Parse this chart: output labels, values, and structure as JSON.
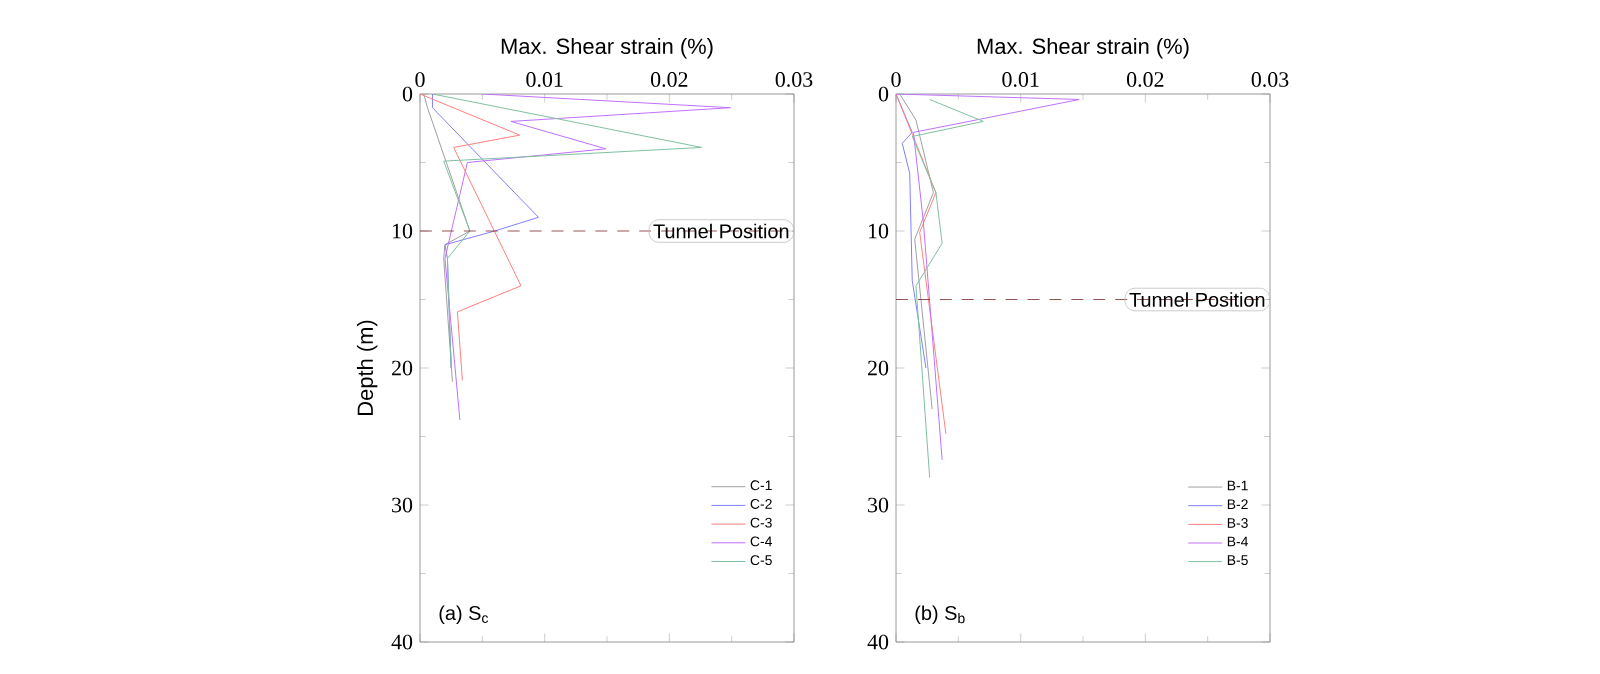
{
  "chart_data": [
    {
      "type": "line",
      "xlabel": "Max. Shear strain (%)",
      "ylabel": "Depth (m)",
      "xlim": [
        0,
        0.03
      ],
      "ylim": [
        40,
        0
      ],
      "xticks": [
        0,
        0.01,
        0.02,
        0.03
      ],
      "yticks": [
        0,
        10,
        20,
        30,
        40
      ],
      "legend": "bottom right",
      "annotations": [
        "(a) S$_{c}$"
      ],
      "ref_lines": [
        {
          "axis": "y",
          "value": 10,
          "label": "Tunnel Position",
          "color": "#7a2a2a",
          "line_style": "dashed"
        }
      ],
      "series": [
        {
          "name": "C-1",
          "color": "#a0a0a0",
          "x": [
            0.0003,
            0.0006,
            0.004,
            0.002,
            0.0019,
            0.0026
          ],
          "values": [
            0,
            1,
            10,
            11,
            12,
            21
          ]
        },
        {
          "name": "C-2",
          "color": "#8080ff",
          "x": [
            0.001,
            0.001,
            0.0095,
            0.006,
            0.002,
            0.0022,
            0.0025
          ],
          "values": [
            0,
            1,
            9,
            10,
            11,
            12,
            20
          ]
        },
        {
          "name": "C-3",
          "color": "#ff8080",
          "x": [
            0,
            0.008,
            0.0027,
            0.0081,
            0.003,
            0.0034
          ],
          "values": [
            0,
            3,
            3.9,
            14,
            15.9,
            20.9
          ]
        },
        {
          "name": "C-4",
          "color": "#c070ff",
          "x": [
            0.005,
            0.0249,
            0.0073,
            0.0149,
            0.0038,
            0.002,
            0.0032
          ],
          "values": [
            0,
            1,
            2,
            4,
            5,
            12,
            23.8
          ]
        },
        {
          "name": "C-5",
          "color": "#80c0a0",
          "x": [
            0.001,
            0.0226,
            0.0019,
            0.004,
            0.0022,
            0.0025
          ],
          "values": [
            0,
            3.9,
            4.9,
            10,
            12,
            20
          ]
        }
      ]
    },
    {
      "type": "line",
      "xlabel": "Max. Shear strain (%)",
      "xlim": [
        0,
        0.03
      ],
      "ylim": [
        40,
        0
      ],
      "xticks": [
        0,
        0.01,
        0.02,
        0.03
      ],
      "yticks": [
        0,
        10,
        20,
        30,
        40
      ],
      "legend": "bottom right",
      "annotations": [
        "(b) S$_{b}$"
      ],
      "ref_lines": [
        {
          "axis": "y",
          "value": 15,
          "label": "Tunnel Position",
          "color": "#7a2a2a",
          "line_style": "dashed"
        }
      ],
      "series": [
        {
          "name": "B-1",
          "color": "#a0a0a0",
          "x": [
            0.0003,
            0.0016,
            0.003,
            0.0015,
            0.0029
          ],
          "values": [
            0,
            1.9,
            7.2,
            10.6,
            23
          ]
        },
        {
          "name": "B-2",
          "color": "#8080ff",
          "x": [
            0,
            0.0013,
            0.0005,
            0.0011,
            0.0013,
            0.0024
          ],
          "values": [
            0,
            2.8,
            3.6,
            5.8,
            13.6,
            20
          ]
        },
        {
          "name": "B-3",
          "color": "#ff8080",
          "x": [
            0,
            0.0032,
            0.0019,
            0.004
          ],
          "values": [
            0,
            7.2,
            10.1,
            24.8
          ]
        },
        {
          "name": "B-4",
          "color": "#c070ff",
          "x": [
            0,
            0.0147,
            0.0053,
            0.0014,
            0.0022,
            0.0037
          ],
          "values": [
            0,
            0.4,
            2.1,
            2.8,
            9.4,
            26.7
          ]
        },
        {
          "name": "B-5",
          "color": "#80c0a0",
          "x": [
            0.0027,
            0.007,
            0.0013,
            0.0032,
            0.0037,
            0.0016,
            0.0027
          ],
          "values": [
            0.4,
            2,
            3.1,
            7.2,
            10.9,
            14,
            28
          ]
        }
      ]
    }
  ]
}
